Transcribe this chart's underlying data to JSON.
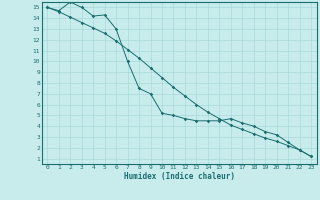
{
  "xlabel": "Humidex (Indice chaleur)",
  "bg_color": "#c8ecec",
  "grid_color": "#a8d8d8",
  "line_color": "#1a6e6e",
  "xlim": [
    -0.5,
    23.5
  ],
  "ylim": [
    0.5,
    15.5
  ],
  "xticks": [
    0,
    1,
    2,
    3,
    4,
    5,
    6,
    7,
    8,
    9,
    10,
    11,
    12,
    13,
    14,
    15,
    16,
    17,
    18,
    19,
    20,
    21,
    22,
    23
  ],
  "yticks": [
    1,
    2,
    3,
    4,
    5,
    6,
    7,
    8,
    9,
    10,
    11,
    12,
    13,
    14,
    15
  ],
  "line1_x": [
    0,
    1,
    2,
    3,
    4,
    5,
    6,
    7,
    8,
    9,
    10,
    11,
    12,
    13,
    14,
    15,
    16,
    17,
    18,
    19,
    20,
    21,
    22,
    23
  ],
  "line1_y": [
    15,
    14.7,
    15.5,
    15.0,
    14.2,
    14.3,
    13.0,
    10.0,
    7.5,
    7.0,
    5.2,
    5.0,
    4.7,
    4.5,
    4.5,
    4.5,
    4.7,
    4.3,
    4.0,
    3.5,
    3.2,
    2.5,
    1.8,
    1.2
  ],
  "line2_x": [
    0,
    1,
    2,
    3,
    4,
    5,
    6,
    7,
    8,
    9,
    10,
    11,
    12,
    13,
    14,
    15,
    16,
    17,
    18,
    19,
    20,
    21,
    22,
    23
  ],
  "line2_y": [
    15,
    14.6,
    14.1,
    13.6,
    13.1,
    12.6,
    11.9,
    11.1,
    10.3,
    9.4,
    8.5,
    7.6,
    6.8,
    6.0,
    5.3,
    4.7,
    4.1,
    3.7,
    3.3,
    2.9,
    2.6,
    2.2,
    1.8,
    1.2
  ]
}
